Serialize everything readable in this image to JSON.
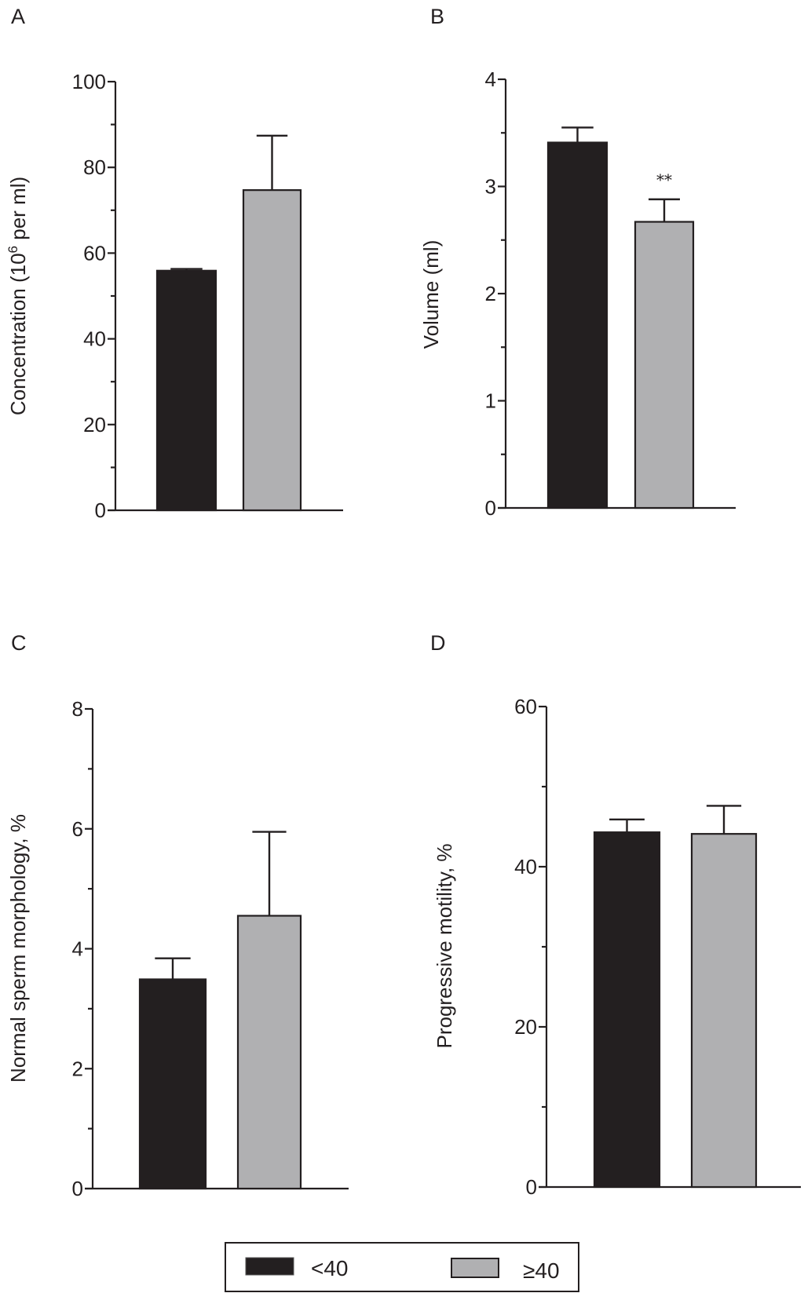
{
  "colors": {
    "group1": "#231f20",
    "group2": "#b0b0b2",
    "outline": "#231f20"
  },
  "legend": {
    "items": [
      {
        "label": "<40",
        "color": "#231f20"
      },
      {
        "label": "≥40",
        "color": "#b0b0b2"
      }
    ]
  },
  "chart_data": [
    {
      "panel": "A",
      "type": "bar",
      "title": "",
      "xlabel": "",
      "ylabel": "Concentration (10",
      "ylabel_sup": "6",
      "ylabel_tail": " per ml)",
      "ylim": [
        0,
        100
      ],
      "major_ticks": [
        0,
        20,
        40,
        60,
        80,
        100
      ],
      "tick_labels": [
        "0",
        "20",
        "40",
        "60",
        "80",
        "100"
      ],
      "minor_ticks": [
        10,
        30,
        50,
        70,
        90
      ],
      "categories": [
        "<40",
        "≥40"
      ],
      "values": [
        55.9,
        74.7
      ],
      "errors": [
        0.4,
        12.7
      ],
      "annotations": [
        "",
        ""
      ]
    },
    {
      "panel": "B",
      "type": "bar",
      "title": "",
      "xlabel": "",
      "ylabel": "Volume (ml)",
      "ylim": [
        0,
        4
      ],
      "major_ticks": [
        0,
        1,
        2,
        3,
        4
      ],
      "tick_labels": [
        "0",
        "1",
        "2",
        "3",
        "4"
      ],
      "minor_ticks": [
        0.5,
        1.5,
        2.5,
        3.5
      ],
      "categories": [
        "<40",
        "≥40"
      ],
      "values": [
        3.41,
        2.67
      ],
      "errors": [
        0.14,
        0.21
      ],
      "annotations": [
        "",
        "**"
      ]
    },
    {
      "panel": "C",
      "type": "bar",
      "title": "",
      "xlabel": "",
      "ylabel": "Normal sperm morphology, %",
      "ylim": [
        0,
        8
      ],
      "major_ticks": [
        0,
        2,
        4,
        6,
        8
      ],
      "tick_labels": [
        "0",
        "2",
        "4",
        "6",
        "8"
      ],
      "minor_ticks": [
        1,
        3,
        5,
        7
      ],
      "categories": [
        "<40",
        "≥40"
      ],
      "values": [
        3.49,
        4.55
      ],
      "errors": [
        0.35,
        1.4
      ],
      "annotations": [
        "",
        ""
      ]
    },
    {
      "panel": "D",
      "type": "bar",
      "title": "",
      "xlabel": "",
      "ylabel": "Progressive motility, %",
      "ylim": [
        0,
        60
      ],
      "major_ticks": [
        0,
        20,
        40,
        60
      ],
      "tick_labels": [
        "0",
        "20",
        "40",
        "60"
      ],
      "minor_ticks": [
        10,
        30,
        50
      ],
      "categories": [
        "<40",
        "≥40"
      ],
      "values": [
        44.3,
        44.1
      ],
      "errors": [
        1.6,
        3.5
      ],
      "annotations": [
        "",
        ""
      ]
    }
  ]
}
